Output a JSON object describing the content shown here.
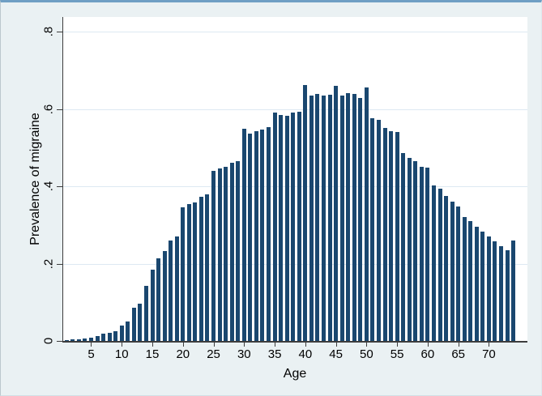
{
  "figure": {
    "background_color": "#eaf1f3",
    "plot_background_color": "#ffffff",
    "top_border_color": "#6f9fc4",
    "axis_color": "#3d3d3d",
    "grid_color": "#dde9f2"
  },
  "chart_data": {
    "type": "bar",
    "title": "",
    "xlabel": "Age",
    "ylabel": "Prevalence of migraine",
    "bar_color": "#1a476f",
    "grid": true,
    "legend": "none",
    "ylim": [
      0,
      0.8
    ],
    "yticks": [
      {
        "value": 0,
        "label": "0"
      },
      {
        "value": 0.2,
        "label": ".2"
      },
      {
        "value": 0.4,
        "label": ".4"
      },
      {
        "value": 0.6,
        "label": ".6"
      },
      {
        "value": 0.8,
        "label": ".8"
      }
    ],
    "xticks": [
      {
        "age": 5,
        "label": "5"
      },
      {
        "age": 10,
        "label": "10"
      },
      {
        "age": 15,
        "label": "15"
      },
      {
        "age": 20,
        "label": "20"
      },
      {
        "age": 25,
        "label": "25"
      },
      {
        "age": 30,
        "label": "30"
      },
      {
        "age": 35,
        "label": "35"
      },
      {
        "age": 40,
        "label": "40"
      },
      {
        "age": 45,
        "label": "45"
      },
      {
        "age": 50,
        "label": "50"
      },
      {
        "age": 55,
        "label": "55"
      },
      {
        "age": 60,
        "label": "60"
      },
      {
        "age": 65,
        "label": "65"
      },
      {
        "age": 70,
        "label": "70"
      }
    ],
    "x": [
      1,
      2,
      3,
      4,
      5,
      6,
      7,
      8,
      9,
      10,
      11,
      12,
      13,
      14,
      15,
      16,
      17,
      18,
      19,
      20,
      21,
      22,
      23,
      24,
      25,
      26,
      27,
      28,
      29,
      30,
      31,
      32,
      33,
      34,
      35,
      36,
      37,
      38,
      39,
      40,
      41,
      42,
      43,
      44,
      45,
      46,
      47,
      48,
      49,
      50,
      51,
      52,
      53,
      54,
      55,
      56,
      57,
      58,
      59,
      60,
      61,
      62,
      63,
      64,
      65,
      66,
      67,
      68,
      69,
      70,
      71,
      72,
      73,
      74
    ],
    "values": [
      0.003,
      0.004,
      0.005,
      0.006,
      0.008,
      0.013,
      0.018,
      0.022,
      0.026,
      0.04,
      0.05,
      0.087,
      0.097,
      0.143,
      0.185,
      0.214,
      0.232,
      0.261,
      0.27,
      0.345,
      0.354,
      0.359,
      0.373,
      0.379,
      0.44,
      0.447,
      0.45,
      0.461,
      0.465,
      0.549,
      0.537,
      0.544,
      0.547,
      0.553,
      0.591,
      0.584,
      0.583,
      0.592,
      0.594,
      0.663,
      0.635,
      0.64,
      0.635,
      0.637,
      0.661,
      0.636,
      0.641,
      0.639,
      0.628,
      0.657,
      0.576,
      0.572,
      0.551,
      0.543,
      0.541,
      0.486,
      0.474,
      0.465,
      0.45,
      0.449,
      0.402,
      0.394,
      0.375,
      0.361,
      0.349,
      0.321,
      0.31,
      0.296,
      0.282,
      0.27,
      0.258,
      0.246,
      0.235,
      0.26
    ]
  }
}
